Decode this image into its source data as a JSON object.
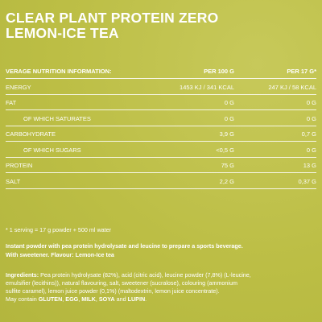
{
  "title_line1": "CLEAR PLANT PROTEIN ZERO",
  "title_line2": "LEMON-ICE TEA",
  "table": {
    "header": {
      "label": "VERAGE NUTRITION INFORMATION:",
      "col1": "PER 100 G",
      "col2": "PER 17 G*"
    },
    "rows": [
      {
        "label": "ENERGY",
        "col1": "1453 KJ / 341 KCAL",
        "col2": "247 KJ / 58 KCAL"
      },
      {
        "label": "FAT",
        "col1": "0 G",
        "col2": "0 G"
      },
      {
        "label": "OF WHICH SATURATES",
        "col1": "0 G",
        "col2": "0 G"
      },
      {
        "label": "CARBOHYDRATE",
        "col1": "3,9 G",
        "col2": "0,7 G"
      },
      {
        "label": "OF WHICH SUGARS",
        "col1": "<0,5 G",
        "col2": "0 G"
      },
      {
        "label": "PROTEIN",
        "col1": "75 G",
        "col2": "13 G"
      },
      {
        "label": "SALT",
        "col1": "2,2 G",
        "col2": "0,37 G"
      }
    ]
  },
  "footnote": "* 1 serving = 17 g powder + 500 ml water",
  "instant_line1": "Instant powder with pea protein hydrolysate and leucine to prepare a sports beverage.",
  "instant_line2": "With sweetener. Flavour: Lemon-Ice tea",
  "ingredients": {
    "label": "Ingredients:",
    "line1": " Pea protein hydrolysate (82%), acid (citric acid), leucine powder (7,8%) (L-leucine,",
    "line2": "emulsifier (lecithins)), natural flavouring, salt, sweetener (sucralose), colouring (ammonium",
    "line3": "sulfite caramel), lemon juice powder (0,1%) (maltodextrin, lemon juice concentrate).",
    "may_contain": "May contain ",
    "allergen1": "GLUTEN",
    "sep1": ", ",
    "allergen2": "EGG",
    "sep2": ", ",
    "allergen3": "MILK",
    "sep3": ", ",
    "allergen4": "SOYA",
    "sep4": " and ",
    "allergen5": "LUPIN",
    "end": "."
  },
  "colors": {
    "background": "#bfc14a",
    "text": "#ffffff"
  }
}
